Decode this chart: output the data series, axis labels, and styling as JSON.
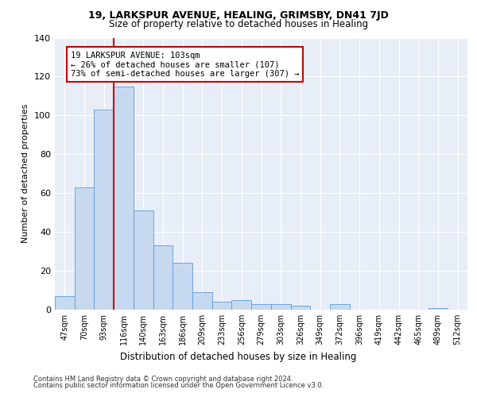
{
  "title1": "19, LARKSPUR AVENUE, HEALING, GRIMSBY, DN41 7JD",
  "title2": "Size of property relative to detached houses in Healing",
  "xlabel": "Distribution of detached houses by size in Healing",
  "ylabel": "Number of detached properties",
  "bar_labels": [
    "47sqm",
    "70sqm",
    "93sqm",
    "116sqm",
    "140sqm",
    "163sqm",
    "186sqm",
    "209sqm",
    "233sqm",
    "256sqm",
    "279sqm",
    "303sqm",
    "326sqm",
    "349sqm",
    "372sqm",
    "396sqm",
    "419sqm",
    "442sqm",
    "465sqm",
    "489sqm",
    "512sqm"
  ],
  "bar_values": [
    7,
    63,
    103,
    115,
    51,
    33,
    24,
    9,
    4,
    5,
    3,
    3,
    2,
    0,
    3,
    0,
    0,
    0,
    0,
    1,
    0
  ],
  "bar_color": "#c7d9f0",
  "bar_edgecolor": "#5b9bd5",
  "property_line_x": 2.5,
  "property_line_color": "#cc0000",
  "annotation_text": "19 LARKSPUR AVENUE: 103sqm\n← 26% of detached houses are smaller (107)\n73% of semi-detached houses are larger (307) →",
  "annotation_box_color": "white",
  "annotation_box_edgecolor": "#cc0000",
  "ylim": [
    0,
    140
  ],
  "yticks": [
    0,
    20,
    40,
    60,
    80,
    100,
    120,
    140
  ],
  "background_color": "#e8eef8",
  "footer_line1": "Contains HM Land Registry data © Crown copyright and database right 2024.",
  "footer_line2": "Contains public sector information licensed under the Open Government Licence v3.0."
}
